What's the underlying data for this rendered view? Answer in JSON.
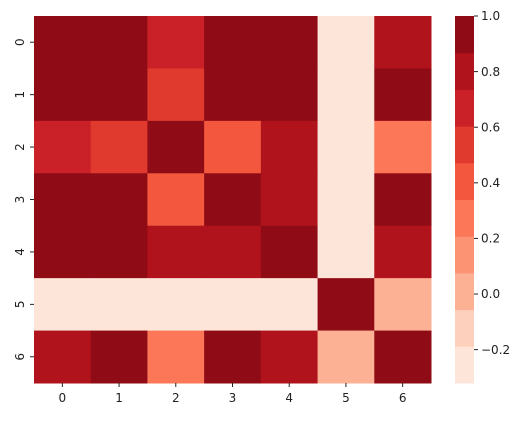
{
  "chart_data": {
    "type": "heatmap",
    "title": "",
    "xlabel": "",
    "ylabel": "",
    "x_categories": [
      "0",
      "1",
      "2",
      "3",
      "4",
      "5",
      "6"
    ],
    "y_categories": [
      "0",
      "1",
      "2",
      "3",
      "4",
      "5",
      "6"
    ],
    "values": [
      [
        1.0,
        0.98,
        0.62,
        1.0,
        1.0,
        -0.3,
        0.78
      ],
      [
        0.98,
        1.0,
        0.52,
        0.99,
        0.99,
        -0.3,
        0.9
      ],
      [
        0.62,
        0.52,
        1.0,
        0.45,
        0.78,
        -0.3,
        0.32
      ],
      [
        1.0,
        0.99,
        0.45,
        1.0,
        0.82,
        -0.3,
        0.92
      ],
      [
        1.0,
        0.99,
        0.78,
        0.82,
        1.0,
        -0.3,
        0.84
      ],
      [
        -0.3,
        -0.3,
        -0.3,
        -0.3,
        -0.3,
        1.0,
        0.06
      ],
      [
        0.84,
        0.96,
        0.3,
        0.98,
        0.82,
        0.06,
        1.0
      ]
    ],
    "colorbar": {
      "min": -0.32,
      "max": 1.0,
      "ticks": [
        -0.2,
        0.0,
        0.2,
        0.4,
        0.6,
        0.8,
        1.0
      ],
      "tick_labels": [
        "−0.2",
        "0.0",
        "0.2",
        "0.4",
        "0.6",
        "0.8",
        "1.0"
      ],
      "colors": [
        "#fee5d9",
        "#fdd0bd",
        "#fcb195",
        "#fc9473",
        "#fb7757",
        "#f3583f",
        "#e03a2f",
        "#c92127",
        "#b1131c",
        "#8f0b15"
      ]
    },
    "colormap": "Reds"
  }
}
